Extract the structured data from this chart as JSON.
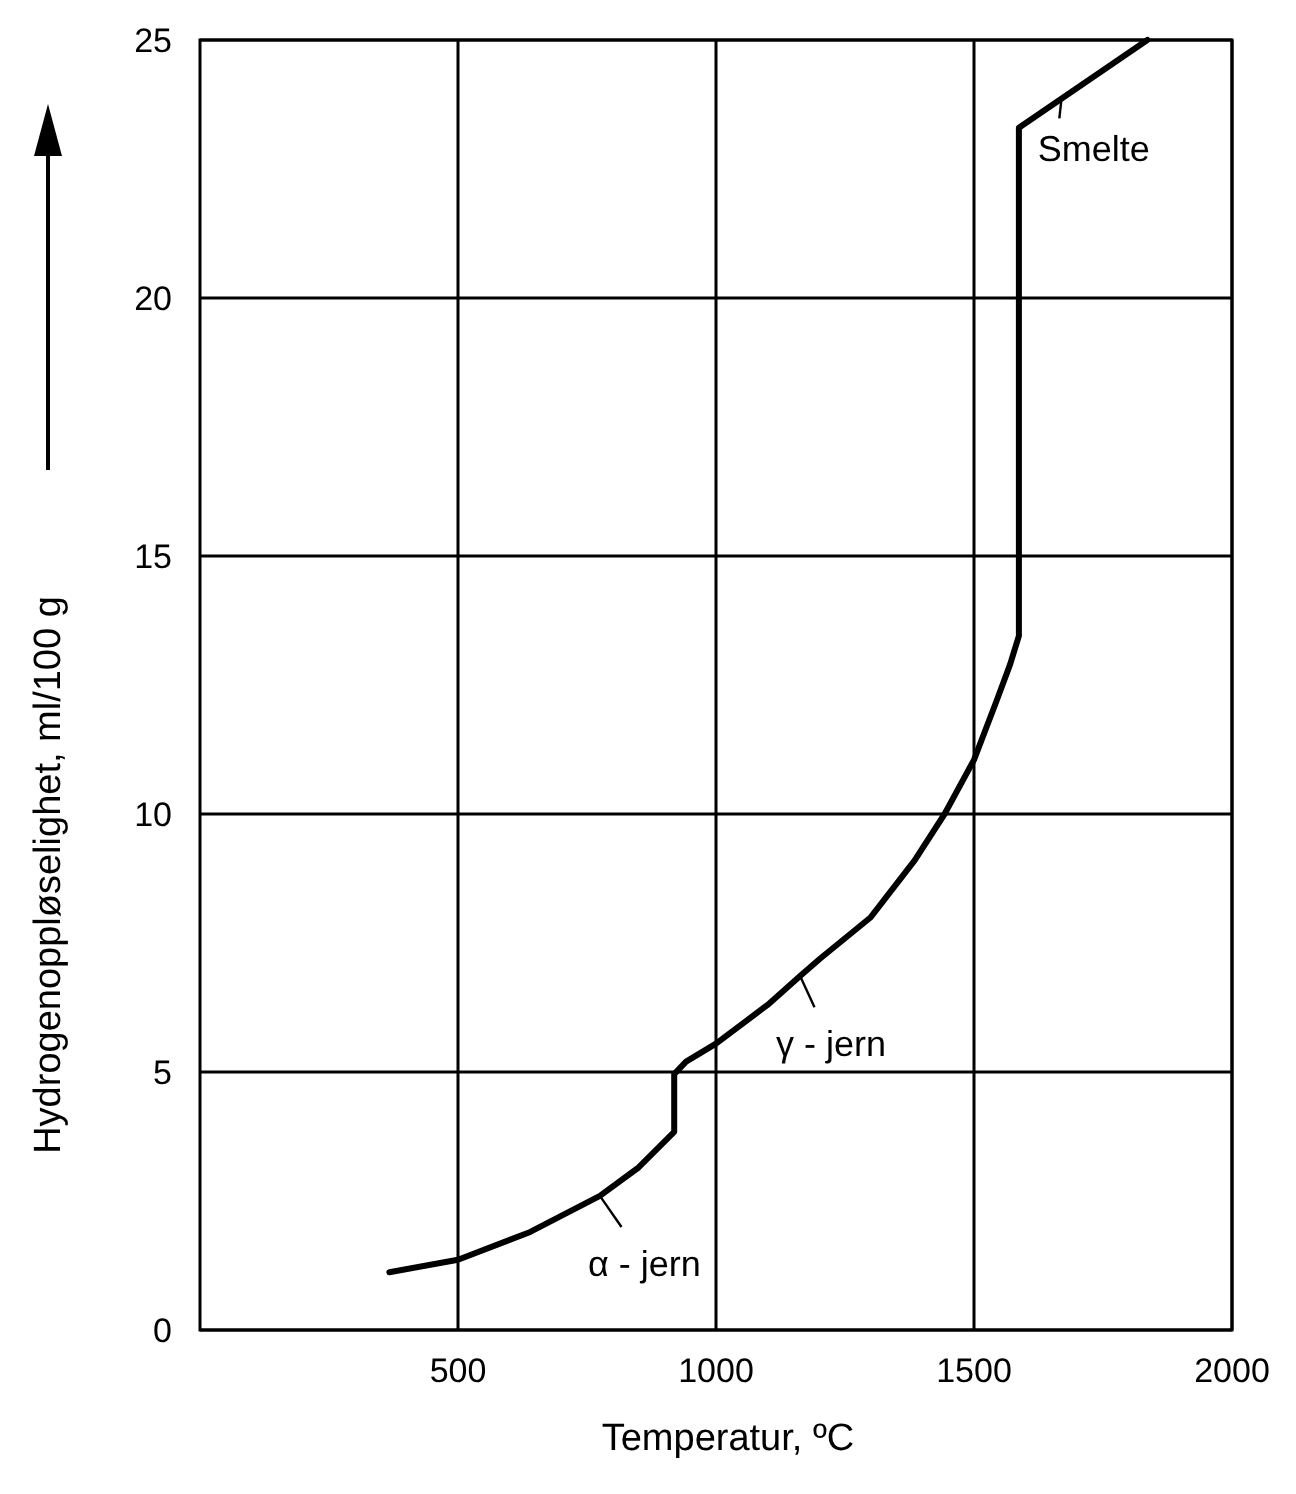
{
  "chart_data": {
    "type": "line",
    "xlabel": "Temperatur, ºC",
    "ylabel": "Hydrogenoppløselighet, ml/100 g",
    "series": [
      {
        "color": "#000000",
        "x": [
          367,
          500,
          640,
          775,
          850,
          919,
          919,
          942,
          1000,
          1100,
          1163,
          1202,
          1300,
          1385,
          1443,
          1500,
          1544,
          1570,
          1587,
          1587,
          1836
        ],
        "values": [
          1.12,
          1.36,
          1.9,
          2.6,
          3.15,
          3.84,
          4.96,
          5.2,
          5.55,
          6.3,
          6.86,
          7.2,
          8.0,
          9.1,
          10.0,
          11.05,
          12.2,
          12.9,
          13.45,
          23.3,
          25
        ]
      }
    ],
    "xlim": [
      0,
      2000
    ],
    "xticks": [
      500,
      1000,
      1500,
      2000
    ],
    "ylim": [
      0,
      25
    ],
    "yticks": [
      0,
      5,
      10,
      15,
      20,
      25
    ],
    "grid": true,
    "annotations": [
      {
        "text": "α - jern",
        "x": 775,
        "y": 2.6
      },
      {
        "text": "γ - jern",
        "x": 1163,
        "y": 6.86
      },
      {
        "text": "Smelte",
        "x": 1670,
        "y": 23.9
      }
    ]
  }
}
